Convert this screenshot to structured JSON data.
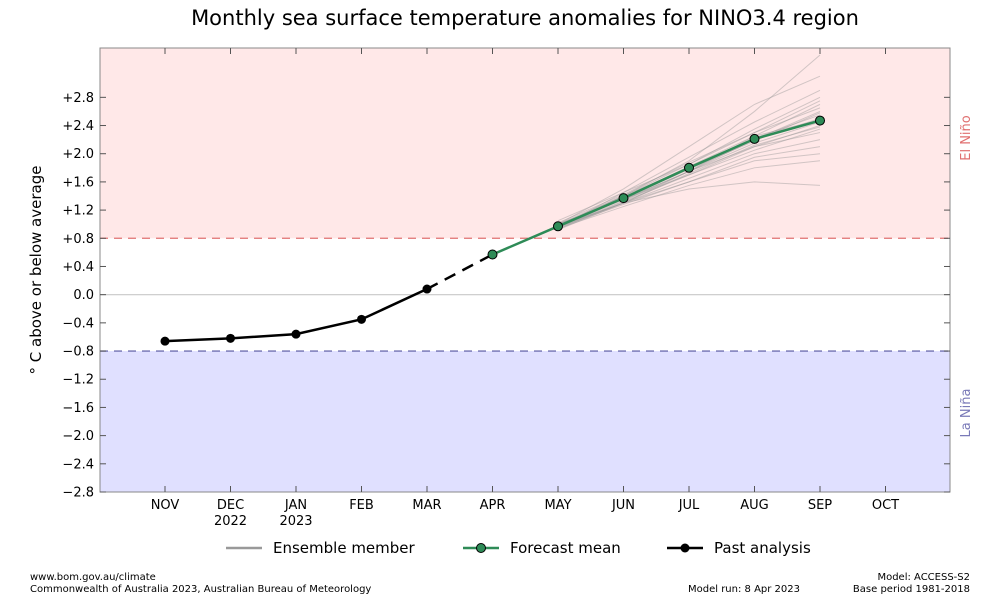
{
  "chart_data": {
    "type": "line",
    "title": "Monthly sea surface temperature anomalies for NINO3.4 region",
    "ylabel": "° C above or below average",
    "xlabel": "",
    "ylim": [
      -2.8,
      3.5
    ],
    "x_categories": [
      "NOV",
      "DEC",
      "JAN",
      "FEB",
      "MAR",
      "APR",
      "MAY",
      "JUN",
      "JUL",
      "AUG",
      "SEP",
      "OCT"
    ],
    "x_sublabels": [
      "",
      "2022",
      "2023",
      "",
      "",
      "",
      "",
      "",
      "",
      "",
      "",
      ""
    ],
    "y_ticks": [
      -2.8,
      -2.4,
      -2.0,
      -1.6,
      -1.2,
      -0.8,
      -0.4,
      0.0,
      0.4,
      0.8,
      1.2,
      1.6,
      2.0,
      2.4,
      2.8
    ],
    "y_tick_labels": [
      "−2.8",
      "−2.4",
      "−2.0",
      "−1.6",
      "−1.2",
      "−0.8",
      "−0.4",
      "0.0",
      "+0.4",
      "+0.8",
      "+1.2",
      "+1.6",
      "+2.0",
      "+2.4",
      "+2.8"
    ],
    "thresholds": {
      "el_nino": 0.8,
      "la_nina": -0.8,
      "el_nino_label": "El Niño",
      "la_nina_label": "La Niña"
    },
    "grid": false,
    "legend_position": "bottom",
    "series": [
      {
        "name": "Past analysis",
        "color": "#000000",
        "categories": [
          "NOV",
          "DEC",
          "JAN",
          "FEB",
          "MAR"
        ],
        "values": [
          -0.66,
          -0.62,
          -0.56,
          -0.35,
          0.08
        ]
      },
      {
        "name": "Forecast mean",
        "color": "#2e8b57",
        "categories": [
          "APR",
          "MAY",
          "JUN",
          "JUL",
          "AUG",
          "SEP"
        ],
        "values": [
          0.57,
          0.97,
          1.37,
          1.8,
          2.21,
          2.47
        ]
      },
      {
        "name": "Ensemble member",
        "color": "#999999",
        "categories": [
          "MAY",
          "JUN",
          "JUL",
          "AUG",
          "SEP"
        ],
        "members": [
          [
            0.98,
            1.4,
            1.9,
            2.6,
            3.4
          ],
          [
            1.0,
            1.5,
            2.1,
            2.7,
            3.1
          ],
          [
            0.95,
            1.45,
            1.95,
            2.45,
            2.9
          ],
          [
            1.05,
            1.45,
            1.85,
            2.35,
            2.8
          ],
          [
            0.97,
            1.35,
            1.75,
            2.25,
            2.7
          ],
          [
            1.0,
            1.4,
            1.8,
            2.2,
            2.6
          ],
          [
            0.95,
            1.4,
            1.85,
            2.3,
            2.65
          ],
          [
            0.98,
            1.37,
            1.8,
            2.22,
            2.55
          ],
          [
            1.0,
            1.35,
            1.75,
            2.2,
            2.5
          ],
          [
            0.95,
            1.3,
            1.75,
            2.15,
            2.45
          ],
          [
            0.97,
            1.38,
            1.82,
            2.25,
            2.48
          ],
          [
            0.93,
            1.32,
            1.7,
            2.1,
            2.4
          ],
          [
            1.0,
            1.35,
            1.7,
            2.05,
            2.35
          ],
          [
            0.96,
            1.33,
            1.75,
            2.1,
            2.3
          ],
          [
            0.98,
            1.3,
            1.65,
            2.0,
            2.2
          ],
          [
            0.95,
            1.28,
            1.6,
            1.95,
            2.1
          ],
          [
            0.97,
            1.3,
            1.6,
            1.9,
            2.0
          ],
          [
            0.94,
            1.25,
            1.55,
            1.8,
            1.9
          ],
          [
            0.96,
            1.3,
            1.5,
            1.6,
            1.55
          ],
          [
            1.02,
            1.42,
            1.88,
            2.3,
            2.75
          ],
          [
            0.99,
            1.36,
            1.78,
            2.18,
            2.58
          ],
          [
            0.92,
            1.3,
            1.72,
            2.12,
            2.38
          ]
        ]
      }
    ]
  },
  "legend": {
    "ensemble": "Ensemble member",
    "forecast": "Forecast mean",
    "past": "Past analysis"
  },
  "footer": {
    "left_line1": "www.bom.gov.au/climate",
    "left_line2": "Commonwealth of Australia 2023, Australian Bureau of Meteorology",
    "model_run": "Model run: 8 Apr 2023",
    "right_line1": "Model: ACCESS-S2",
    "right_line2": "Base period 1981-2018"
  },
  "colors": {
    "el_nino_fill": "#ffe8e8",
    "la_nina_fill": "#e0e0ff",
    "el_nino_line": "#e07070",
    "la_nina_line": "#7070b0",
    "el_nino_text": "#e07070",
    "la_nina_text": "#7a7ab8",
    "forecast": "#2e8b57"
  }
}
